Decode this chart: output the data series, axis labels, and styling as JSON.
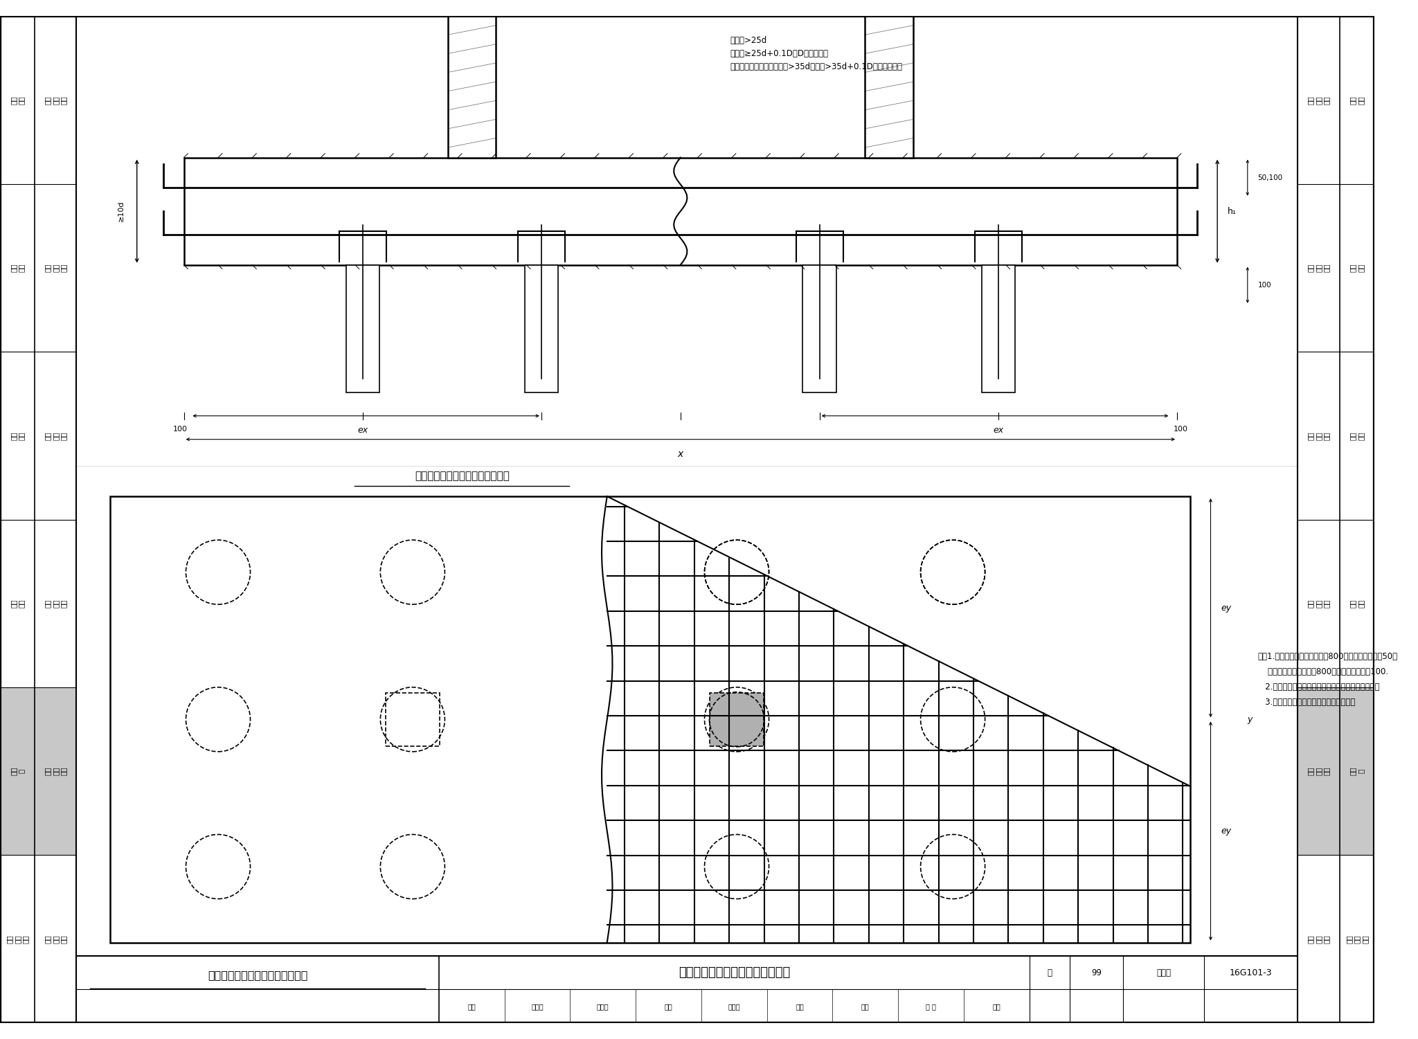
{
  "bg_color": "#ffffff",
  "sidebar_sections": [
    {
      "label1": "标准\n构造\n详图",
      "label2": "一般\n构造",
      "active": false
    },
    {
      "label1": "标准\n构造\n详图",
      "label2": "独立\n基础",
      "active": false
    },
    {
      "label1": "标准\n构造\n详图",
      "label2": "条形\n基础",
      "active": false
    },
    {
      "label1": "标准\n构造\n详图",
      "label2": "筏形\n基础",
      "active": false
    },
    {
      "label1": "标准\n构造\n详图",
      "label2": "桩基\n础",
      "active": true
    },
    {
      "label1": "标准\n构造\n详图",
      "label2": "基础\n相关\n构造",
      "active": false
    }
  ],
  "active_bg": "#c8c8c8",
  "title_underdiagram": "双柱联合承台底部与顶部配筋构造",
  "title_footer": "双柱联合承台底部与顶部配筋构造",
  "fig_number": "16G101-3",
  "page_label": "页",
  "page_num": "99",
  "atlas_label": "图集号",
  "footer_row1": [
    "审核",
    "黄志刚",
    "黄启刚",
    "校对",
    "曲卫波",
    "审定",
    "设计",
    "林 蔚",
    "核定"
  ],
  "annot_text": "方桩：>25d\n圆桩：≥25d+0.1D，D为圆桩直径\n（当伸至墙卸直段长度方桩>35d或圆桩>35d+0.1D时可不弯折）",
  "note_text": "注：1.当桩直径或桩截面边长＜800时，桩顶嵌入承台50；\n    当桩径或桩截面边长＞800时，桩顶嵌入承台100.\n   2.几何尺寸和配筋按具体结构设计和本图构造确定。\n   3.需设置上层钢筋网片时，由设计指定。",
  "dim_10d": "≥10d",
  "dim_50100": "50,100",
  "dim_100": "100",
  "dim_h1": "h₁",
  "dim_ex": "ex",
  "dim_x": "x",
  "dim_ey": "ey",
  "dim_y": "y"
}
